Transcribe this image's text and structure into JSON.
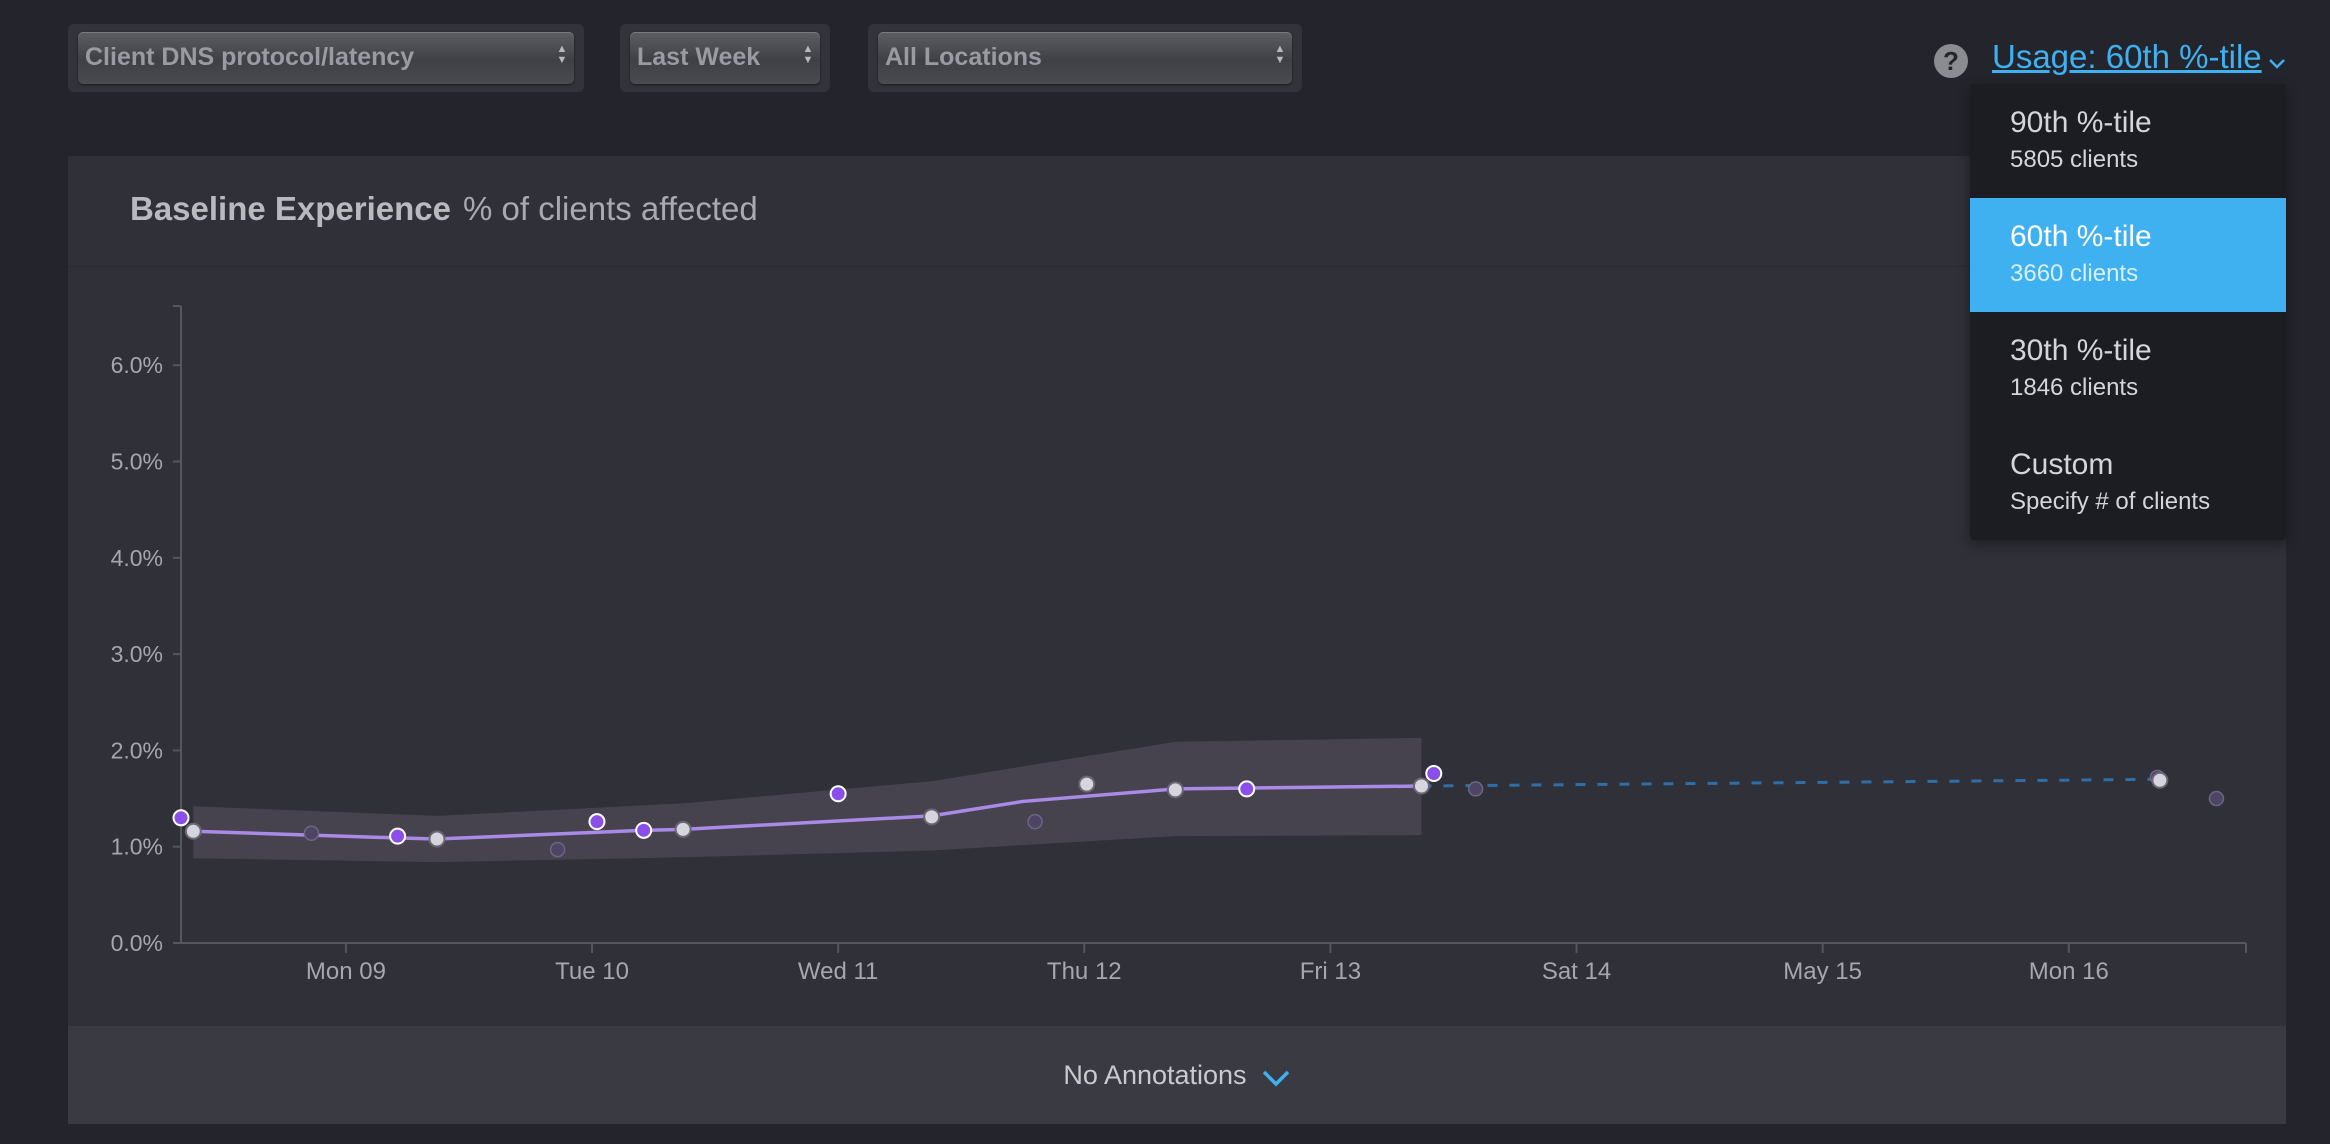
{
  "filters": {
    "metric": "Client DNS protocol/latency",
    "range": "Last Week",
    "location": "All Locations"
  },
  "usage": {
    "help_glyph": "?",
    "label": "Usage: 60th %-tile",
    "options": [
      {
        "title": "90th %-tile",
        "subtitle": "5805 clients",
        "selected": false
      },
      {
        "title": "60th %-tile",
        "subtitle": "3660 clients",
        "selected": true
      },
      {
        "title": "30th %-tile",
        "subtitle": "1846 clients",
        "selected": false
      },
      {
        "title": "Custom",
        "subtitle": "Specify # of clients",
        "selected": false
      }
    ]
  },
  "panel": {
    "title": "Baseline Experience",
    "subtitle": "% of clients affected"
  },
  "annotations": {
    "label": "No Annotations"
  },
  "colors": {
    "line": "#a98ae6",
    "point_fill": "#8a4fe8",
    "point_light": "#d6d4dc",
    "band": "#4a4654",
    "forecast": "#2f6fa8",
    "accent": "#3fb0f0"
  },
  "chart_data": {
    "type": "line",
    "title": "Baseline Experience",
    "ylabel": "% of clients affected",
    "y_ticks": [
      "0.0%",
      "1.0%",
      "2.0%",
      "3.0%",
      "4.0%",
      "5.0%",
      "6.0%"
    ],
    "ylim": [
      0,
      6.6
    ],
    "x_ticks": [
      {
        "label": "Mon 09",
        "x": 1.0
      },
      {
        "label": "Tue 10",
        "x": 2.0
      },
      {
        "label": "Wed 11",
        "x": 3.0
      },
      {
        "label": "Thu 12",
        "x": 4.0
      },
      {
        "label": "Fri 13",
        "x": 5.0
      },
      {
        "label": "Sat 14",
        "x": 6.0
      },
      {
        "label": "May 15",
        "x": 7.0
      },
      {
        "label": "Mon 16",
        "x": 8.0
      }
    ],
    "xlim": [
      0.33,
      8.72
    ],
    "baseline": [
      {
        "x": 0.38,
        "y": 1.16
      },
      {
        "x": 1.22,
        "y": 1.09
      },
      {
        "x": 1.37,
        "y": 1.08
      },
      {
        "x": 2.21,
        "y": 1.17
      },
      {
        "x": 2.37,
        "y": 1.18
      },
      {
        "x": 3.38,
        "y": 1.32
      },
      {
        "x": 3.75,
        "y": 1.47
      },
      {
        "x": 3.75,
        "y": 1.47
      },
      {
        "x": 4.37,
        "y": 1.6
      },
      {
        "x": 5.37,
        "y": 1.63
      }
    ],
    "band_upper": [
      {
        "x": 0.38,
        "y": 1.42
      },
      {
        "x": 1.37,
        "y": 1.32
      },
      {
        "x": 2.37,
        "y": 1.45
      },
      {
        "x": 3.38,
        "y": 1.68
      },
      {
        "x": 4.37,
        "y": 2.09
      },
      {
        "x": 5.37,
        "y": 2.13
      }
    ],
    "band_lower": [
      {
        "x": 0.38,
        "y": 0.88
      },
      {
        "x": 1.37,
        "y": 0.84
      },
      {
        "x": 2.37,
        "y": 0.89
      },
      {
        "x": 3.38,
        "y": 0.96
      },
      {
        "x": 4.37,
        "y": 1.11
      },
      {
        "x": 5.37,
        "y": 1.12
      }
    ],
    "forecast": [
      {
        "x": 5.37,
        "y": 1.63
      },
      {
        "x": 8.37,
        "y": 1.7
      }
    ],
    "points_purple": [
      {
        "x": 0.33,
        "y": 1.3
      },
      {
        "x": 1.21,
        "y": 1.11
      },
      {
        "x": 2.02,
        "y": 1.26
      },
      {
        "x": 2.21,
        "y": 1.17
      },
      {
        "x": 3.0,
        "y": 1.55
      },
      {
        "x": 4.66,
        "y": 1.6
      },
      {
        "x": 5.42,
        "y": 1.76
      }
    ],
    "points_light": [
      {
        "x": 0.38,
        "y": 1.16
      },
      {
        "x": 1.37,
        "y": 1.08
      },
      {
        "x": 2.37,
        "y": 1.18
      },
      {
        "x": 3.38,
        "y": 1.31
      },
      {
        "x": 4.01,
        "y": 1.65
      },
      {
        "x": 4.37,
        "y": 1.59
      },
      {
        "x": 5.37,
        "y": 1.63
      },
      {
        "x": 8.37,
        "y": 1.69
      }
    ],
    "points_faded": [
      {
        "x": 0.86,
        "y": 1.14
      },
      {
        "x": 1.86,
        "y": 0.97
      },
      {
        "x": 3.8,
        "y": 1.26
      },
      {
        "x": 5.59,
        "y": 1.6
      },
      {
        "x": 8.6,
        "y": 1.5
      },
      {
        "x": 8.36,
        "y": 1.72
      }
    ]
  }
}
